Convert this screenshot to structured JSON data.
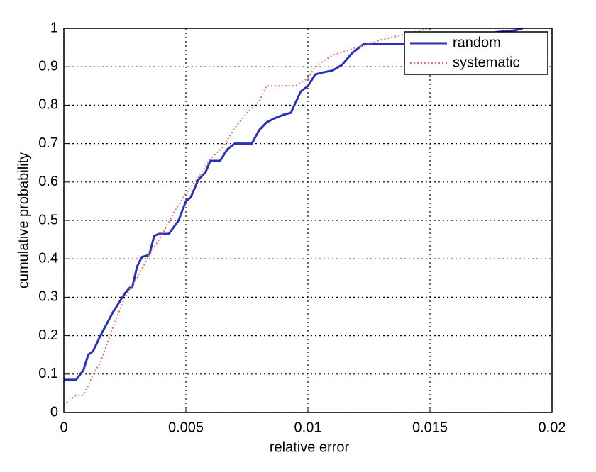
{
  "chart_data": {
    "type": "line",
    "xlabel": "relative error",
    "ylabel": "cumulative probability",
    "xlim": [
      0,
      0.02
    ],
    "ylim": [
      0,
      1
    ],
    "xticks": [
      0,
      0.005,
      0.01,
      0.015,
      0.02
    ],
    "yticks": [
      0,
      0.1,
      0.2,
      0.3,
      0.4,
      0.5,
      0.6,
      0.7,
      0.8,
      0.9,
      1
    ],
    "grid": true,
    "legend": "upper right",
    "series": [
      {
        "name": "random",
        "color": "#2a2fb8",
        "style": "solid",
        "x": [
          0,
          0.0005,
          0.0008,
          0.001,
          0.0012,
          0.0015,
          0.002,
          0.0025,
          0.0027,
          0.0028,
          0.003,
          0.0032,
          0.0035,
          0.0037,
          0.0039,
          0.0043,
          0.0047,
          0.005,
          0.0052,
          0.0055,
          0.0058,
          0.006,
          0.0064,
          0.0067,
          0.007,
          0.0077,
          0.008,
          0.0083,
          0.0086,
          0.009,
          0.0093,
          0.0097,
          0.01,
          0.0103,
          0.0106,
          0.011,
          0.0114,
          0.0118,
          0.0123,
          0.0175,
          0.0177,
          0.0185,
          0.0188
        ],
        "values": [
          0.085,
          0.085,
          0.11,
          0.15,
          0.16,
          0.2,
          0.26,
          0.31,
          0.325,
          0.325,
          0.38,
          0.405,
          0.41,
          0.46,
          0.465,
          0.465,
          0.5,
          0.55,
          0.56,
          0.605,
          0.625,
          0.655,
          0.655,
          0.685,
          0.7,
          0.7,
          0.735,
          0.755,
          0.765,
          0.775,
          0.78,
          0.835,
          0.85,
          0.88,
          0.885,
          0.89,
          0.905,
          0.935,
          0.96,
          0.96,
          0.99,
          0.995,
          1.0
        ]
      },
      {
        "name": "systematic",
        "color": "#e07070",
        "style": "dotted",
        "x": [
          0,
          0.0005,
          0.0008,
          0.001,
          0.0012,
          0.0015,
          0.002,
          0.0025,
          0.003,
          0.0035,
          0.004,
          0.0045,
          0.005,
          0.0055,
          0.006,
          0.0065,
          0.007,
          0.0075,
          0.008,
          0.0083,
          0.009,
          0.0095,
          0.01,
          0.0103,
          0.011,
          0.012,
          0.013,
          0.014,
          0.015
        ],
        "values": [
          0.02,
          0.045,
          0.045,
          0.07,
          0.1,
          0.13,
          0.22,
          0.3,
          0.35,
          0.41,
          0.46,
          0.52,
          0.57,
          0.61,
          0.66,
          0.69,
          0.74,
          0.78,
          0.81,
          0.85,
          0.85,
          0.85,
          0.87,
          0.9,
          0.93,
          0.95,
          0.97,
          0.985,
          1.0
        ]
      }
    ]
  }
}
